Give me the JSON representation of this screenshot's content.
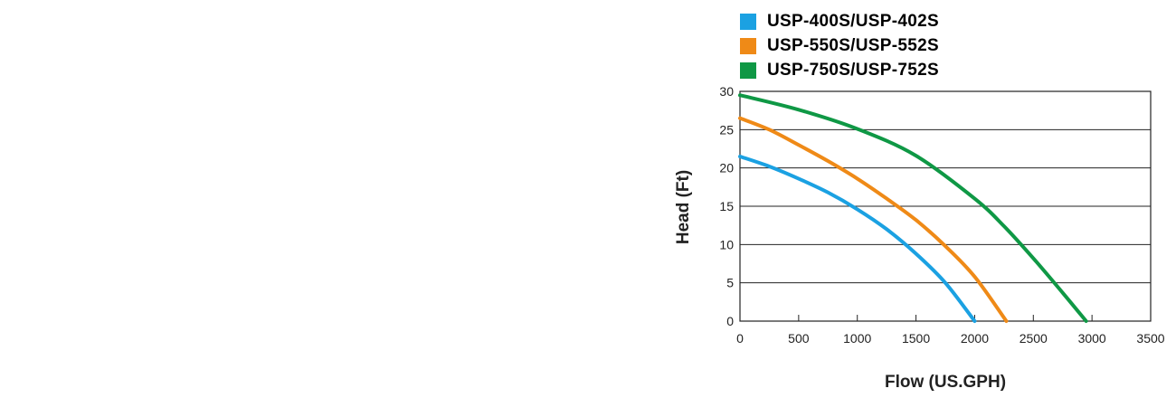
{
  "chart_data": {
    "type": "line",
    "xlabel": "Flow (US.GPH)",
    "ylabel": "Head (Ft)",
    "xlim": [
      0,
      3500
    ],
    "ylim": [
      0,
      30
    ],
    "xticks": [
      0,
      500,
      1000,
      1500,
      2000,
      2500,
      3000,
      3500
    ],
    "yticks": [
      0,
      5,
      10,
      15,
      20,
      25,
      30
    ],
    "grid": "horizontal",
    "legend_position": "top",
    "series": [
      {
        "name": "USP-400S/USP-402S",
        "color": "#1ba1e2",
        "x": [
          0,
          250,
          500,
          750,
          1000,
          1250,
          1500,
          1750,
          2000
        ],
        "y": [
          21.5,
          20.2,
          18.6,
          16.8,
          14.6,
          12.0,
          8.8,
          5.0,
          0
        ]
      },
      {
        "name": "USP-550S/USP-552S",
        "color": "#ef8a17",
        "x": [
          0,
          250,
          500,
          750,
          1000,
          1250,
          1500,
          1750,
          2000,
          2270
        ],
        "y": [
          26.5,
          25.0,
          23.0,
          20.9,
          18.6,
          16.0,
          13.2,
          9.8,
          5.8,
          0
        ]
      },
      {
        "name": "USP-750S/USP-752S",
        "color": "#0f9845",
        "x": [
          0,
          500,
          1000,
          1500,
          2000,
          2250,
          2500,
          2750,
          2950
        ],
        "y": [
          29.5,
          27.6,
          25.1,
          21.6,
          16.0,
          12.4,
          8.2,
          3.7,
          0
        ]
      }
    ]
  }
}
